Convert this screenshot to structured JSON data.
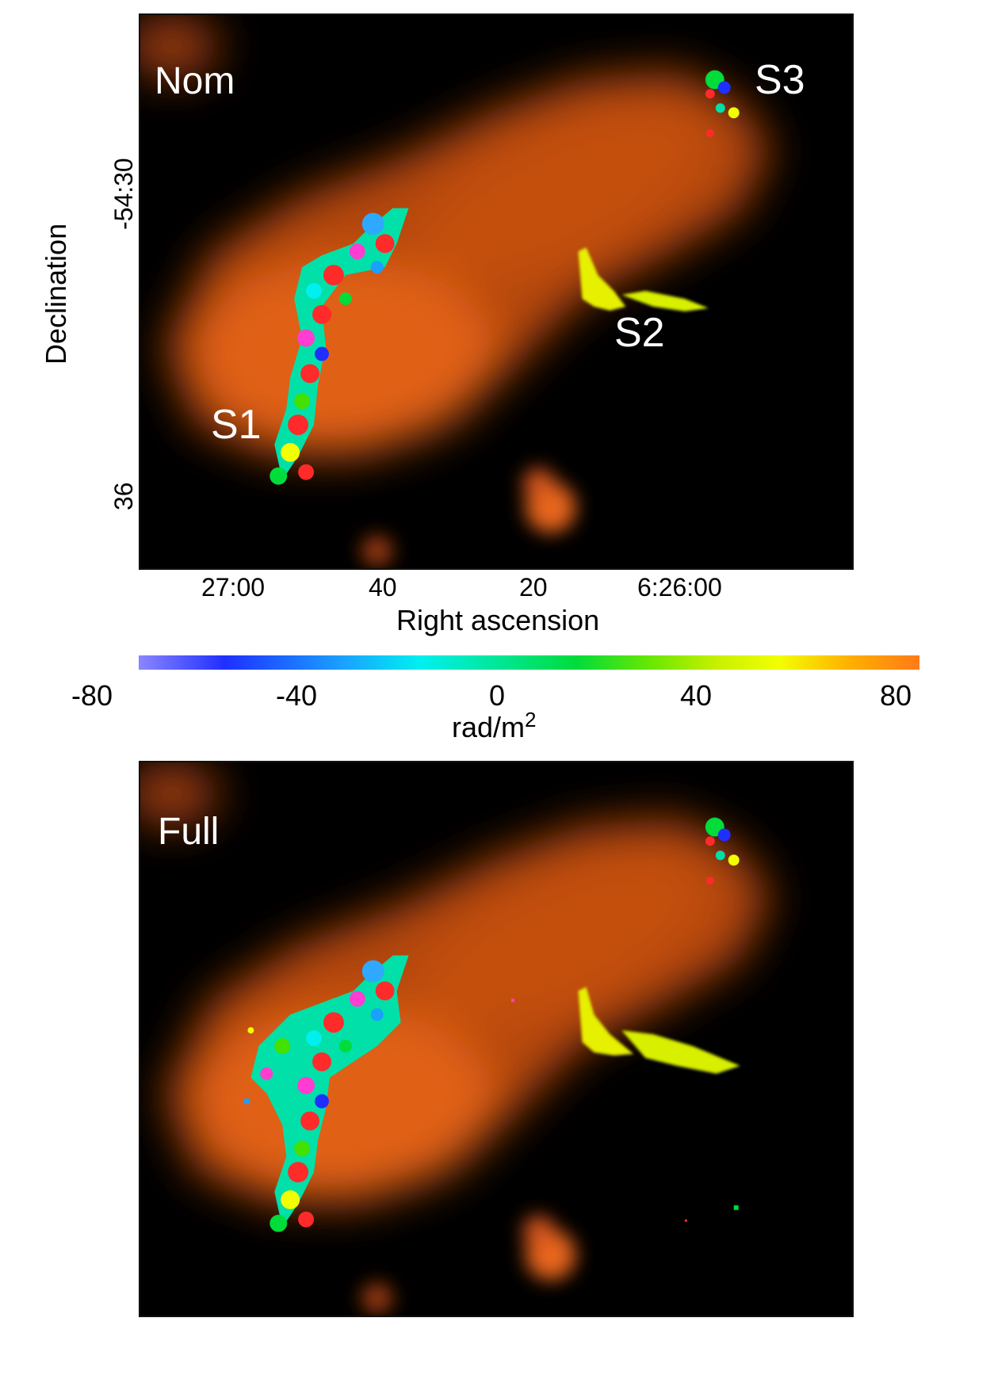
{
  "panels": [
    {
      "id": "nom",
      "label": "Nom",
      "sources": [
        "S1",
        "S2",
        "S3"
      ]
    },
    {
      "id": "full",
      "label": "Full"
    }
  ],
  "axes": {
    "ylabel": "Declination",
    "yticks": [
      "-54:30",
      "36"
    ],
    "xlabel": "Right ascension",
    "xticks": [
      "27:00",
      "40",
      "20",
      "6:26:00"
    ]
  },
  "colorbar": {
    "ticks": [
      "-80",
      "-40",
      "0",
      "40",
      "80"
    ],
    "unit_base": "rad/m",
    "unit_exp": "2",
    "range": [
      -80,
      80
    ],
    "colors": [
      "#8a86ff",
      "#1f2fff",
      "#1aa0ff",
      "#00f0f0",
      "#00e8a0",
      "#00dc3a",
      "#6ee800",
      "#c8f000",
      "#f2ff00",
      "#ffb000",
      "#ff7a18"
    ]
  },
  "colors": {
    "background": "#000000",
    "emission": "#e8661a",
    "s2": "#e6f000"
  }
}
